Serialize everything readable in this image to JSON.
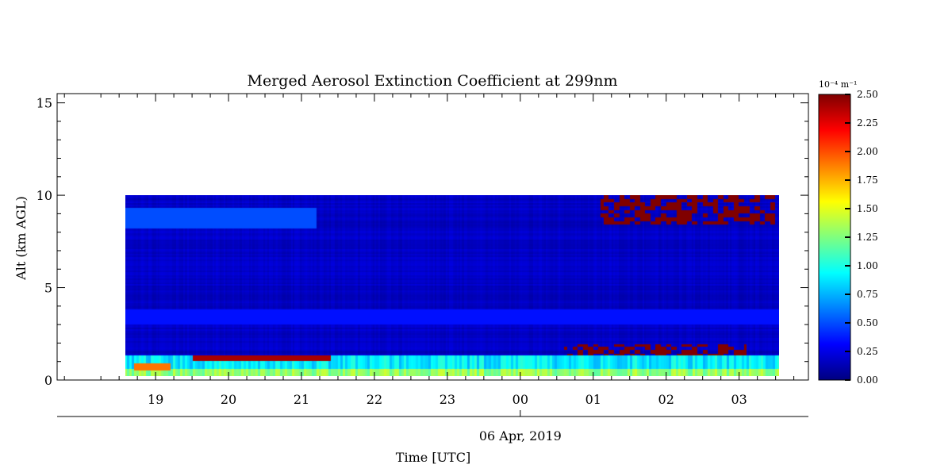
{
  "chart_data": {
    "type": "heatmap",
    "title": "Merged Aerosol Extinction Coefficient at 299nm",
    "ylabel": "Alt (km AGL)",
    "xlabel": "Time [UTC]",
    "date_label": "06 Apr, 2019",
    "ylim": [
      0,
      15.5
    ],
    "y_ticks": [
      0,
      5,
      10,
      15
    ],
    "y_tick_labels": [
      "0",
      "5",
      "10",
      "15"
    ],
    "x_tick_labels": [
      "19",
      "20",
      "21",
      "22",
      "23",
      "00",
      "01",
      "02",
      "03"
    ],
    "x_tick_hours": [
      19,
      20,
      21,
      22,
      23,
      24,
      25,
      26,
      27
    ],
    "xlim_hours": [
      17.65,
      27.95
    ],
    "data_extent": {
      "start_hour": 18.58,
      "end_hour": 27.55,
      "min_alt_km": 0.2,
      "max_alt_km": 10.0
    },
    "date_marker_hour": 24,
    "colorbar": {
      "unit_label": "10⁻⁴ m⁻¹",
      "min": 0.0,
      "max": 2.5,
      "tick_values": [
        0.0,
        0.25,
        0.5,
        0.75,
        1.0,
        1.25,
        1.5,
        1.75,
        2.0,
        2.25,
        2.5
      ],
      "tick_labels": [
        "0.00",
        "0.25",
        "0.50",
        "0.75",
        "1.00",
        "1.25",
        "1.50",
        "1.75",
        "2.00",
        "2.25",
        "2.50"
      ],
      "colormap": "jet"
    },
    "features": [
      {
        "feature": "background",
        "value": 0.15
      },
      {
        "feature": "surface layer",
        "alt_km": [
          0.2,
          0.6
        ],
        "hours": [
          18.58,
          27.55
        ],
        "value": 1.3
      },
      {
        "feature": "boundary layer",
        "alt_km": [
          0.6,
          1.3
        ],
        "hours": [
          18.58,
          27.55
        ],
        "value": 0.9
      },
      {
        "feature": "elevated layer",
        "alt_km": [
          1.0,
          1.3
        ],
        "hours": [
          19.5,
          21.4
        ],
        "value": 2.4
      },
      {
        "feature": "near-surface plume",
        "alt_km": [
          0.5,
          0.9
        ],
        "hours": [
          18.7,
          19.2
        ],
        "value": 1.9
      },
      {
        "feature": "aerosol layer",
        "alt_km": [
          1.3,
          1.9
        ],
        "hours": [
          24.6,
          27.1
        ],
        "value": 2.5
      },
      {
        "feature": "cirrus",
        "alt_km": [
          8.4,
          10.0
        ],
        "hours": [
          25.1,
          27.5
        ],
        "value": 2.5
      },
      {
        "feature": "upper layer",
        "alt_km": [
          3.0,
          3.8
        ],
        "hours": [
          18.58,
          27.55
        ],
        "value": 0.35
      },
      {
        "feature": "lofted aerosol",
        "alt_km": [
          8.2,
          9.3
        ],
        "hours": [
          18.58,
          21.2
        ],
        "value": 0.5
      }
    ]
  }
}
